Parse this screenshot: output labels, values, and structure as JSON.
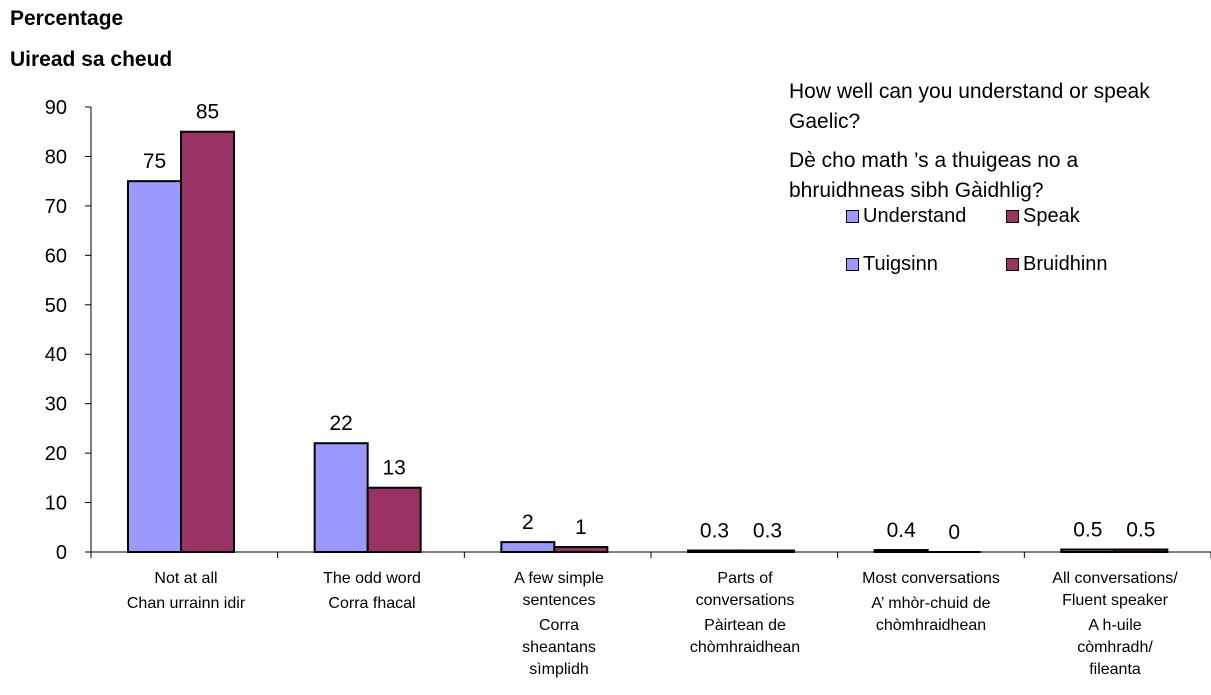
{
  "y_axis_title_en": "Percentage",
  "y_axis_title_gd": "Uiread sa cheud",
  "question_en": "How well can you understand or speak Gaelic?",
  "question_gd": "Dè cho math ’s a thuigeas no a bhruidhneas sibh Gàidhlig?",
  "legend": {
    "understand_en": "Understand",
    "speak_en": "Speak",
    "understand_gd": "Tuigsinn",
    "speak_gd": "Bruidhinn"
  },
  "categories": [
    {
      "en": "Not at all",
      "gd": "Chan urrainn idir"
    },
    {
      "en": "The odd word",
      "gd": "Corra fhacal"
    },
    {
      "en": "A few simple sentences",
      "gd": "Corra sheantans sìmplidh"
    },
    {
      "en": "Parts of conversations",
      "gd": "Pàirtean de chòmhraidhean"
    },
    {
      "en": "Most conversations",
      "gd": "A’ mhòr-chuid de chòmhraidhean"
    },
    {
      "en": "All conversations/ Fluent speaker",
      "gd": "A h-uile còmhradh/ fileanta"
    }
  ],
  "chart_data": {
    "type": "bar",
    "categories": [
      "Not at all / Chan urrainn idir",
      "The odd word / Corra fhacal",
      "A few simple sentences / Corra sheantans sìmplidh",
      "Parts of conversations / Pàirtean de chòmhraidhean",
      "Most conversations / A’ mhòr-chuid de chòmhraidhean",
      "All conversations/ Fluent speaker / A h-uile còmhradh/ fileanta"
    ],
    "series": [
      {
        "name": "Understand / Tuigsinn",
        "values": [
          75,
          22,
          2,
          0.3,
          0.4,
          0.5
        ],
        "color": "#9999ff"
      },
      {
        "name": "Speak / Bruidhinn",
        "values": [
          85,
          13,
          1,
          0.3,
          0,
          0.5
        ],
        "color": "#993366"
      }
    ],
    "data_labels": [
      [
        "75",
        "22",
        "2",
        "0.3",
        "0.4",
        "0.5"
      ],
      [
        "85",
        "13",
        "1",
        "0.3",
        "0",
        "0.5"
      ]
    ],
    "ylim": [
      0,
      90
    ],
    "yticks": [
      0,
      10,
      20,
      30,
      40,
      50,
      60,
      70,
      80,
      90
    ],
    "ylabel": "Percentage / Uiread sa cheud",
    "legend_position": "top-right",
    "grid": false
  }
}
